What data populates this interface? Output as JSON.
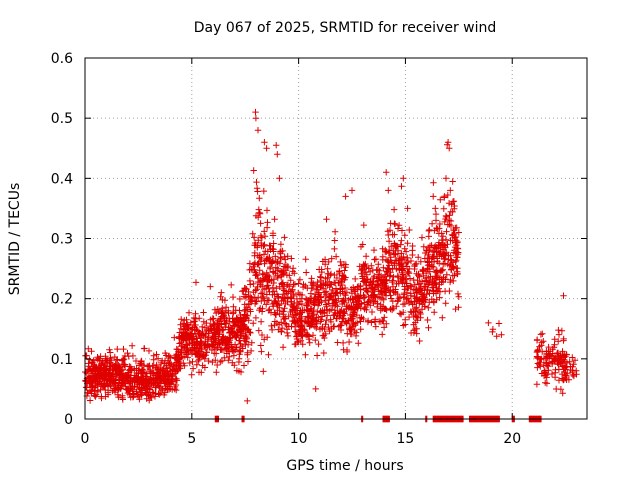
{
  "chart_data": {
    "type": "scatter",
    "title": "Day 067 of 2025, SRMTID for receiver wind",
    "xlabel": "GPS time / hours",
    "ylabel": "SRMTID / TECUs",
    "xlim": [
      0,
      23.5
    ],
    "ylim": [
      0,
      0.6
    ],
    "x_ticks": [
      0,
      5,
      10,
      15,
      20
    ],
    "y_ticks": [
      0,
      0.1,
      0.2,
      0.3,
      0.4,
      0.5,
      0.6
    ],
    "x_tick_labels": [
      "0",
      "5",
      "10",
      "15",
      "20"
    ],
    "y_tick_labels": [
      "0",
      "0.1",
      "0.2",
      "0.3",
      "0.4",
      "0.5",
      "0.6"
    ],
    "grid": true,
    "marker": "+",
    "marker_color": "#e00000",
    "series": [
      {
        "name": "SRMTID",
        "profile": [
          [
            0.0,
            0.068,
            0.035
          ],
          [
            0.5,
            0.07,
            0.03
          ],
          [
            1.0,
            0.075,
            0.03
          ],
          [
            1.5,
            0.07,
            0.028
          ],
          [
            2.0,
            0.065,
            0.03
          ],
          [
            2.5,
            0.065,
            0.028
          ],
          [
            3.0,
            0.06,
            0.028
          ],
          [
            3.5,
            0.065,
            0.03
          ],
          [
            4.0,
            0.07,
            0.03
          ],
          [
            4.3,
            0.09,
            0.03
          ],
          [
            4.6,
            0.13,
            0.035
          ],
          [
            5.0,
            0.13,
            0.04
          ],
          [
            5.5,
            0.12,
            0.04
          ],
          [
            6.0,
            0.14,
            0.04
          ],
          [
            6.5,
            0.14,
            0.05
          ],
          [
            7.0,
            0.14,
            0.05
          ],
          [
            7.5,
            0.15,
            0.05
          ],
          [
            7.8,
            0.2,
            0.07
          ],
          [
            8.0,
            0.26,
            0.1
          ],
          [
            8.5,
            0.24,
            0.09
          ],
          [
            9.0,
            0.21,
            0.07
          ],
          [
            9.5,
            0.2,
            0.06
          ],
          [
            10.0,
            0.16,
            0.05
          ],
          [
            10.5,
            0.17,
            0.05
          ],
          [
            11.0,
            0.19,
            0.06
          ],
          [
            11.5,
            0.2,
            0.06
          ],
          [
            12.0,
            0.2,
            0.07
          ],
          [
            12.5,
            0.17,
            0.05
          ],
          [
            13.0,
            0.22,
            0.05
          ],
          [
            13.5,
            0.21,
            0.05
          ],
          [
            14.0,
            0.22,
            0.06
          ],
          [
            14.5,
            0.25,
            0.07
          ],
          [
            15.0,
            0.23,
            0.07
          ],
          [
            15.5,
            0.2,
            0.06
          ],
          [
            16.0,
            0.24,
            0.06
          ],
          [
            16.5,
            0.26,
            0.07
          ],
          [
            17.0,
            0.3,
            0.08
          ],
          [
            17.5,
            0.26,
            0.06
          ]
        ],
        "gaps": [
          [
            17.7,
            19.1
          ],
          [
            19.25,
            21.1
          ]
        ],
        "clusters": [
          [
            19.2,
            0.15,
            0.02,
            6
          ],
          [
            21.5,
            0.1,
            0.04,
            60
          ],
          [
            22.2,
            0.1,
            0.04,
            70
          ],
          [
            22.7,
            0.085,
            0.02,
            25
          ]
        ],
        "spikes": [
          [
            7.98,
            0.51
          ],
          [
            8.0,
            0.5
          ],
          [
            8.1,
            0.48
          ],
          [
            8.4,
            0.46
          ],
          [
            8.5,
            0.45
          ],
          [
            8.95,
            0.455
          ],
          [
            9.0,
            0.44
          ],
          [
            9.1,
            0.4
          ],
          [
            12.5,
            0.38
          ],
          [
            12.2,
            0.37
          ],
          [
            13.0,
            0.29
          ],
          [
            14.1,
            0.41
          ],
          [
            14.2,
            0.38
          ],
          [
            14.9,
            0.4
          ],
          [
            15.1,
            0.35
          ],
          [
            16.3,
            0.37
          ],
          [
            16.4,
            0.35
          ],
          [
            16.9,
            0.4
          ],
          [
            17.0,
            0.46
          ],
          [
            17.05,
            0.45
          ],
          [
            17.1,
            0.38
          ],
          [
            17.5,
            0.31
          ],
          [
            22.4,
            0.205
          ],
          [
            7.6,
            0.03
          ],
          [
            10.8,
            0.05
          ]
        ],
        "zero_x_min": 6.1,
        "zero_ranges": [
          [
            6.1,
            6.25
          ],
          [
            7.35,
            7.45
          ],
          [
            12.95,
            13.0
          ],
          [
            13.95,
            14.25
          ],
          [
            15.95,
            16.0
          ],
          [
            16.3,
            17.7
          ],
          [
            18.0,
            19.4
          ],
          [
            20.0,
            20.1
          ],
          [
            20.8,
            21.35
          ]
        ],
        "n_points": 2600,
        "seed": 67
      }
    ]
  }
}
